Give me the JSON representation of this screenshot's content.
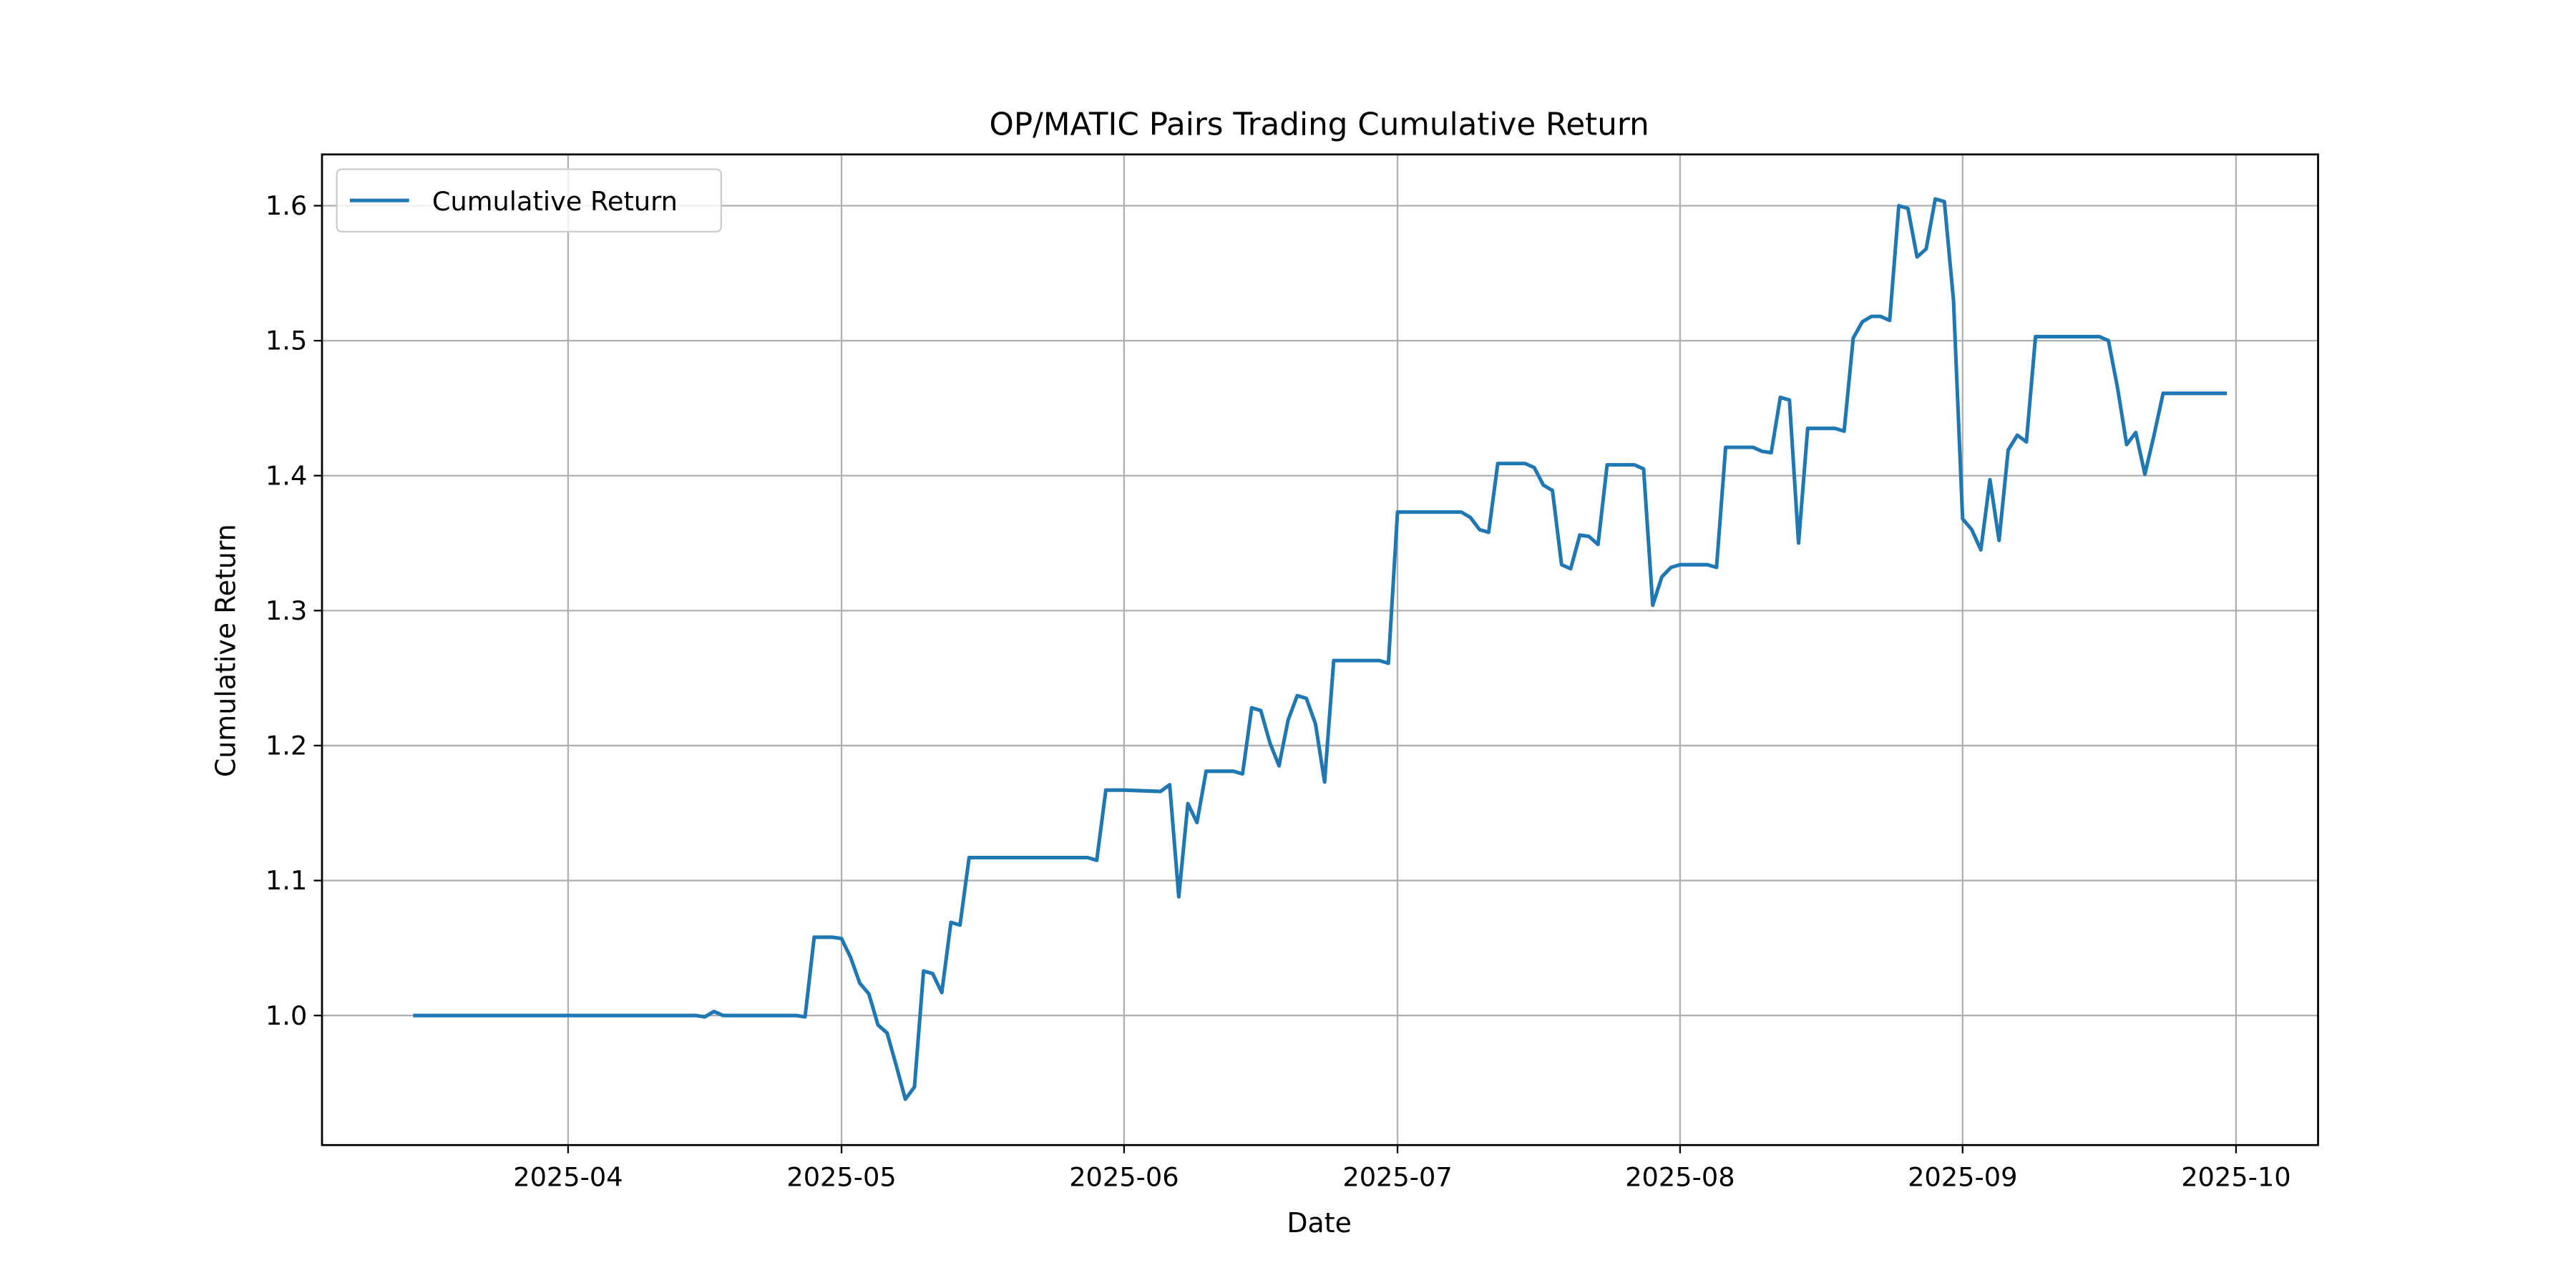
{
  "chart_data": {
    "type": "line",
    "title": "OP/MATIC Pairs Trading Cumulative Return",
    "x_label": "Date",
    "y_label": "Cumulative Return",
    "x": [
      "2025-03-15",
      "2025-04-15",
      "2025-04-16",
      "2025-04-17",
      "2025-04-18",
      "2025-04-26",
      "2025-04-27",
      "2025-04-28",
      "2025-04-30",
      "2025-05-01",
      "2025-05-02",
      "2025-05-03",
      "2025-05-04",
      "2025-05-05",
      "2025-05-06",
      "2025-05-07",
      "2025-05-08",
      "2025-05-09",
      "2025-05-10",
      "2025-05-11",
      "2025-05-12",
      "2025-05-13",
      "2025-05-14",
      "2025-05-15",
      "2025-05-28",
      "2025-05-29",
      "2025-05-30",
      "2025-06-01",
      "2025-06-05",
      "2025-06-06",
      "2025-06-07",
      "2025-06-08",
      "2025-06-09",
      "2025-06-10",
      "2025-06-13",
      "2025-06-14",
      "2025-06-15",
      "2025-06-16",
      "2025-06-17",
      "2025-06-18",
      "2025-06-19",
      "2025-06-20",
      "2025-06-21",
      "2025-06-22",
      "2025-06-23",
      "2025-06-24",
      "2025-06-29",
      "2025-06-30",
      "2025-07-01",
      "2025-07-08",
      "2025-07-09",
      "2025-07-10",
      "2025-07-11",
      "2025-07-12",
      "2025-07-15",
      "2025-07-16",
      "2025-07-17",
      "2025-07-18",
      "2025-07-19",
      "2025-07-20",
      "2025-07-21",
      "2025-07-22",
      "2025-07-23",
      "2025-07-24",
      "2025-07-27",
      "2025-07-28",
      "2025-07-29",
      "2025-07-30",
      "2025-07-31",
      "2025-08-01",
      "2025-08-04",
      "2025-08-05",
      "2025-08-06",
      "2025-08-09",
      "2025-08-10",
      "2025-08-11",
      "2025-08-12",
      "2025-08-13",
      "2025-08-14",
      "2025-08-15",
      "2025-08-18",
      "2025-08-19",
      "2025-08-20",
      "2025-08-21",
      "2025-08-22",
      "2025-08-23",
      "2025-08-24",
      "2025-08-25",
      "2025-08-26",
      "2025-08-27",
      "2025-08-28",
      "2025-08-29",
      "2025-08-30",
      "2025-08-31",
      "2025-09-01",
      "2025-09-02",
      "2025-09-03",
      "2025-09-04",
      "2025-09-05",
      "2025-09-06",
      "2025-09-07",
      "2025-09-08",
      "2025-09-09",
      "2025-09-16",
      "2025-09-17",
      "2025-09-18",
      "2025-09-19",
      "2025-09-20",
      "2025-09-21",
      "2025-09-22",
      "2025-09-23",
      "2025-09-30"
    ],
    "series": [
      {
        "name": "Cumulative Return",
        "color": "#1f77b4",
        "values": [
          1.0,
          1.0,
          0.999,
          1.003,
          1.0,
          1.0,
          0.999,
          1.058,
          1.058,
          1.057,
          1.043,
          1.024,
          1.016,
          0.993,
          0.987,
          0.963,
          0.938,
          0.947,
          1.033,
          1.031,
          1.017,
          1.069,
          1.067,
          1.117,
          1.117,
          1.115,
          1.167,
          1.167,
          1.166,
          1.171,
          1.088,
          1.157,
          1.143,
          1.181,
          1.181,
          1.179,
          1.228,
          1.226,
          1.202,
          1.185,
          1.219,
          1.237,
          1.235,
          1.216,
          1.173,
          1.263,
          1.263,
          1.261,
          1.373,
          1.373,
          1.369,
          1.36,
          1.358,
          1.409,
          1.409,
          1.406,
          1.393,
          1.389,
          1.334,
          1.331,
          1.356,
          1.355,
          1.349,
          1.408,
          1.408,
          1.405,
          1.304,
          1.325,
          1.332,
          1.334,
          1.334,
          1.332,
          1.421,
          1.421,
          1.418,
          1.417,
          1.458,
          1.456,
          1.35,
          1.435,
          1.435,
          1.433,
          1.502,
          1.514,
          1.518,
          1.518,
          1.515,
          1.6,
          1.598,
          1.562,
          1.568,
          1.605,
          1.603,
          1.53,
          1.368,
          1.36,
          1.345,
          1.397,
          1.352,
          1.419,
          1.43,
          1.425,
          1.503,
          1.503,
          1.5,
          1.465,
          1.423,
          1.432,
          1.401,
          1.43,
          1.461,
          1.461
        ]
      }
    ],
    "xlim": [
      "2025-03-05",
      "2025-10-10"
    ],
    "xticks": [
      "2025-04",
      "2025-05",
      "2025-06",
      "2025-07",
      "2025-08",
      "2025-09",
      "2025-10"
    ],
    "ylim": [
      0.904,
      1.638
    ],
    "yticks": [
      {
        "value": 1.0,
        "label": "1.0"
      },
      1.1,
      1.2,
      1.3,
      1.4,
      1.5,
      1.6
    ],
    "grid": true,
    "legend": "upper left"
  }
}
